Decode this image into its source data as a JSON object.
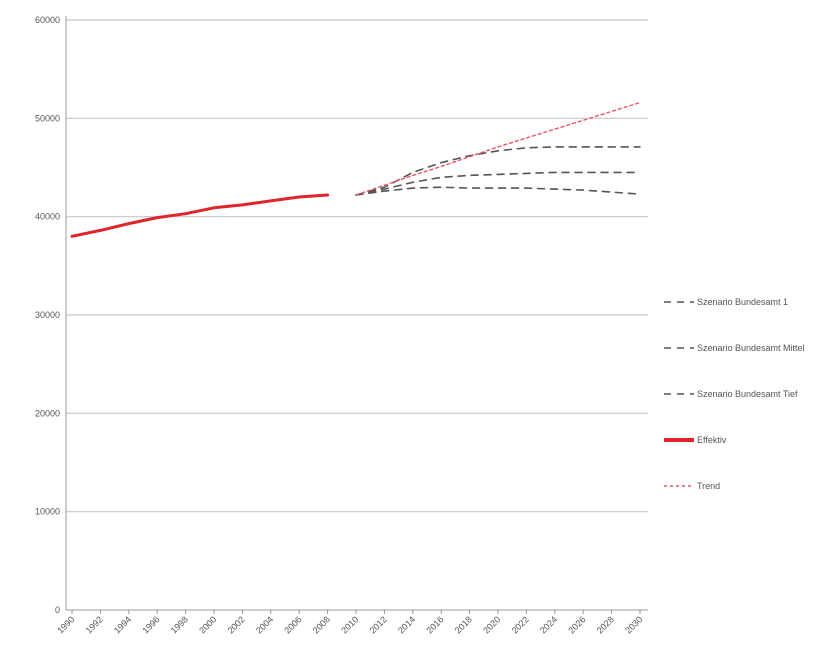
{
  "chart_data": {
    "type": "line",
    "title": "",
    "xlabel": "",
    "ylabel": "",
    "ylim": [
      0,
      60000
    ],
    "yticks": [
      0,
      10000,
      20000,
      30000,
      40000,
      50000,
      60000
    ],
    "ytick_labels": [
      "0",
      "10000",
      "20000",
      "30000",
      "40000",
      "50000",
      "60000"
    ],
    "grid": true,
    "legend_position": "right",
    "x": [
      "1990",
      "1992",
      "1994",
      "1996",
      "1998",
      "2000",
      "2002",
      "2004",
      "2006",
      "2008",
      "2010",
      "2012",
      "2014",
      "2016",
      "2018",
      "2020",
      "2022",
      "2024",
      "2026",
      "2028",
      "2030"
    ],
    "series": [
      {
        "name": "Szenario Bundesamt 1",
        "color": "#555555",
        "dash": "dashed",
        "values": [
          null,
          null,
          null,
          null,
          null,
          null,
          null,
          null,
          null,
          null,
          42200,
          43000,
          44500,
          45500,
          46200,
          46700,
          47000,
          47100,
          47100,
          47100,
          47100
        ]
      },
      {
        "name": "Szenario Bundesamt Mittel",
        "color": "#555555",
        "dash": "dashed",
        "values": [
          null,
          null,
          null,
          null,
          null,
          null,
          null,
          null,
          null,
          null,
          42200,
          42800,
          43500,
          44000,
          44200,
          44300,
          44400,
          44500,
          44500,
          44500,
          44500
        ]
      },
      {
        "name": "Szenario Bundesamt Tief",
        "color": "#555555",
        "dash": "dashed",
        "values": [
          null,
          null,
          null,
          null,
          null,
          null,
          null,
          null,
          null,
          null,
          42200,
          42600,
          42900,
          43000,
          42900,
          42900,
          42900,
          42800,
          42700,
          42500,
          42300
        ]
      },
      {
        "name": "Effektiv",
        "color": "#e0242b",
        "dash": "solid",
        "values": [
          38000,
          38600,
          39300,
          39900,
          40300,
          40900,
          41200,
          41600,
          42000,
          42200,
          null,
          null,
          null,
          null,
          null,
          null,
          null,
          null,
          null,
          null,
          null
        ]
      },
      {
        "name": "Trend",
        "color": "#e8566a",
        "dash": "dotted",
        "values": [
          null,
          null,
          null,
          null,
          null,
          null,
          null,
          null,
          null,
          null,
          42200,
          43200,
          44200,
          45100,
          46100,
          47100,
          48000,
          48900,
          49800,
          50700,
          51600
        ]
      }
    ]
  }
}
